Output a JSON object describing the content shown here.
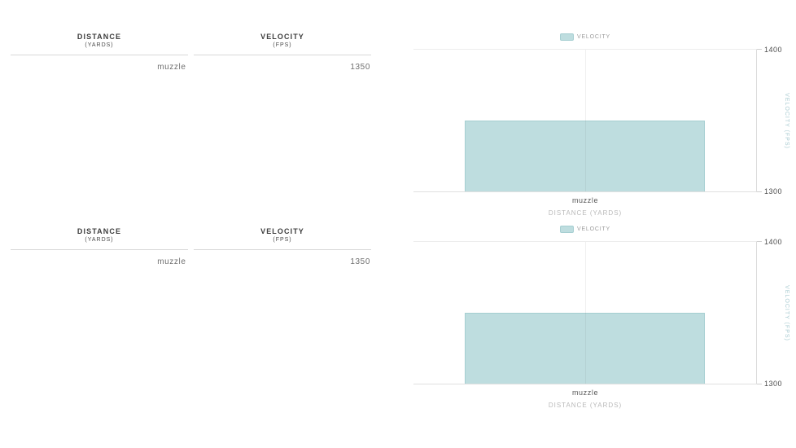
{
  "colors": {
    "bar_fill": "#bedddf",
    "bar_border": "#a5ced1",
    "teal_axis_title": "#a9cbd1"
  },
  "tables": [
    {
      "columns": [
        {
          "label": "DISTANCE",
          "unit": "(YARDS)"
        },
        {
          "label": "VELOCITY",
          "unit": "(FPS)"
        }
      ],
      "rows": [
        {
          "distance": "muzzle",
          "velocity": "1350"
        }
      ]
    },
    {
      "columns": [
        {
          "label": "DISTANCE",
          "unit": "(YARDS)"
        },
        {
          "label": "VELOCITY",
          "unit": "(FPS)"
        }
      ],
      "rows": [
        {
          "distance": "muzzle",
          "velocity": "1350"
        }
      ]
    }
  ],
  "charts": [
    {
      "legend_label": "VELOCITY",
      "y_tick_max": "1400",
      "y_tick_min": "1300",
      "y_axis_title": "VELOCITY (FPS)",
      "x_tick": "muzzle",
      "x_axis_title": "DISTANCE (YARDS)"
    },
    {
      "legend_label": "VELOCITY",
      "y_tick_max": "1400",
      "y_tick_min": "1300",
      "y_axis_title": "VELOCITY (FPS)",
      "x_tick": "muzzle",
      "x_axis_title": "DISTANCE (YARDS)"
    }
  ],
  "chart_data": [
    {
      "type": "bar",
      "categories": [
        "muzzle"
      ],
      "series": [
        {
          "name": "VELOCITY",
          "values": [
            1350
          ]
        }
      ],
      "title": "",
      "xlabel": "DISTANCE (YARDS)",
      "ylabel": "VELOCITY (FPS)",
      "ylim": [
        1300,
        1400
      ],
      "yticks": [
        1300,
        1400
      ],
      "y_axis_side": "right",
      "legend_position": "top-center",
      "grid": true,
      "bar_width_pct": 70
    },
    {
      "type": "bar",
      "categories": [
        "muzzle"
      ],
      "series": [
        {
          "name": "VELOCITY",
          "values": [
            1350
          ]
        }
      ],
      "title": "",
      "xlabel": "DISTANCE (YARDS)",
      "ylabel": "VELOCITY (FPS)",
      "ylim": [
        1300,
        1400
      ],
      "yticks": [
        1300,
        1400
      ],
      "y_axis_side": "right",
      "legend_position": "top-center",
      "grid": true,
      "bar_width_pct": 70
    }
  ]
}
